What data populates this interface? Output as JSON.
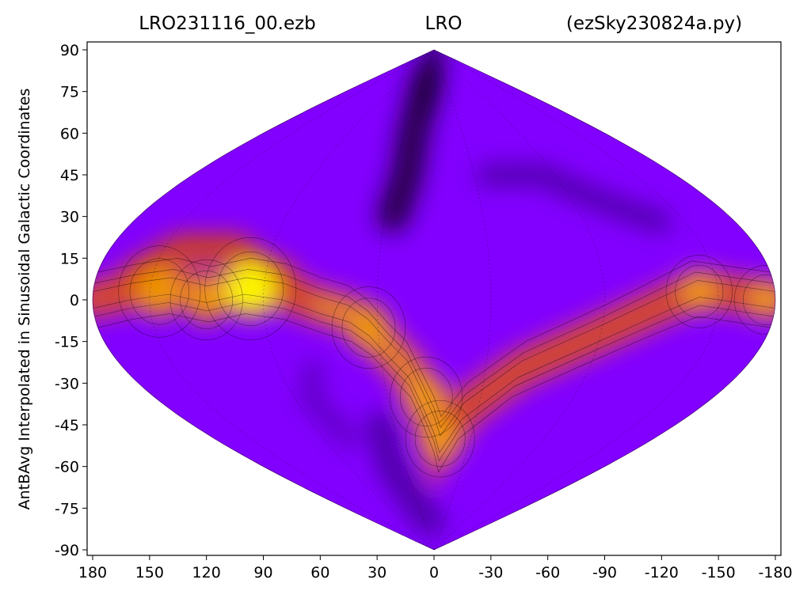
{
  "chart_data": {
    "type": "heatmap",
    "projection": "sinusoidal",
    "title_left": "LRO231116_00.ezb",
    "title_center": "LRO",
    "title_right": "(ezSky230824a.py)",
    "ylabel": "AntBAvg Interpolated in Sinusoidal Galactic Coordinates",
    "xlim": [
      180,
      -180
    ],
    "ylim": [
      -90,
      90
    ],
    "x_ticks": [
      "180",
      "150",
      "120",
      "90",
      "60",
      "30",
      "0",
      "-30",
      "-60",
      "-90",
      "-120",
      "-150",
      "-180"
    ],
    "x_tick_values": [
      180,
      150,
      120,
      90,
      60,
      30,
      0,
      -30,
      -60,
      -90,
      -120,
      -150,
      -180
    ],
    "y_ticks": [
      "90",
      "75",
      "60",
      "45",
      "30",
      "15",
      "0",
      "-15",
      "-30",
      "-45",
      "-60",
      "-75",
      "-90"
    ],
    "y_tick_values": [
      90,
      75,
      60,
      45,
      30,
      15,
      0,
      -15,
      -30,
      -45,
      -60,
      -75,
      -90
    ],
    "colormap": [
      "#1a0030",
      "#4b00a0",
      "#8200ff",
      "#c8367a",
      "#d64a00",
      "#f09a00",
      "#ffff00"
    ],
    "background_color": "#8200ff",
    "hot_spots": [
      {
        "l": 97,
        "b": 4,
        "strength": 1.0
      },
      {
        "l": 145,
        "b": 3,
        "strength": 0.85
      },
      {
        "l": 120,
        "b": 0,
        "strength": 0.7
      },
      {
        "l": 35,
        "b": -10,
        "strength": 0.72
      },
      {
        "l": 5,
        "b": -35,
        "strength": 0.7
      },
      {
        "l": -5,
        "b": -50,
        "strength": 0.65
      },
      {
        "l": -140,
        "b": 3,
        "strength": 0.6
      },
      {
        "l": -175,
        "b": 0,
        "strength": 0.55
      }
    ],
    "dark_spots": [
      {
        "l": 20,
        "b": 50,
        "strength": 1.0
      },
      {
        "l": -100,
        "b": 40,
        "strength": 0.8
      },
      {
        "l": 50,
        "b": -60,
        "strength": 0.75
      },
      {
        "l": 0,
        "b": 85,
        "strength": 0.9
      }
    ],
    "grid": false
  }
}
